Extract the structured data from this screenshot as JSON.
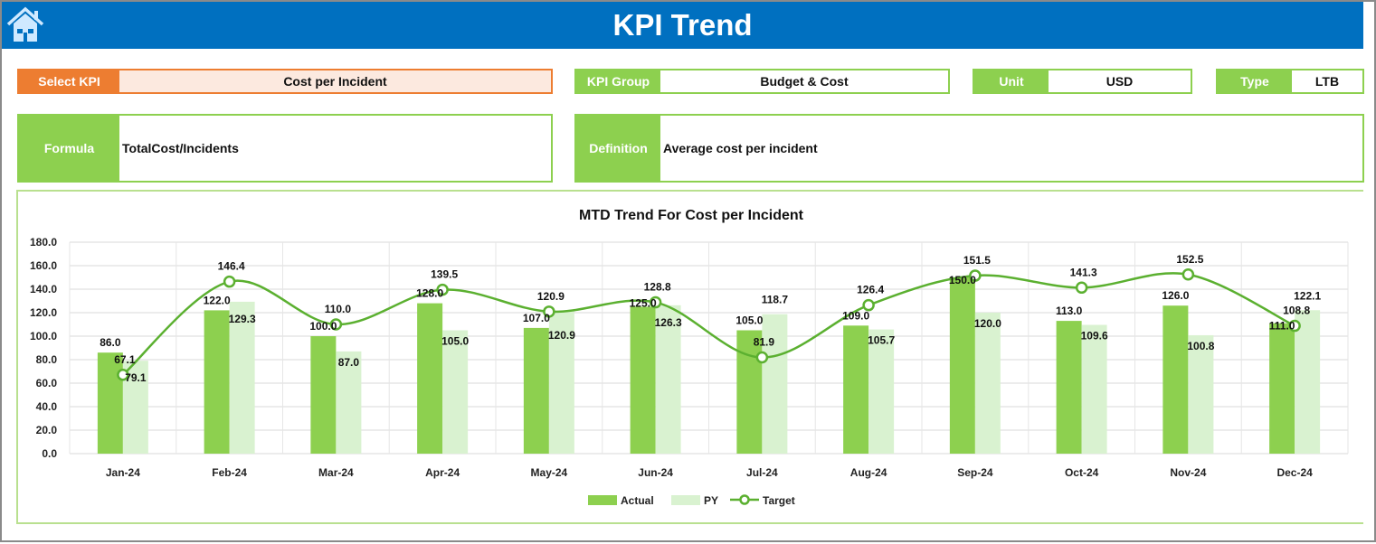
{
  "header": {
    "title": "KPI Trend",
    "home_icon": "home-icon"
  },
  "filters": {
    "select_kpi_label": "Select KPI",
    "select_kpi_value": "Cost per Incident",
    "kpi_group_label": "KPI Group",
    "kpi_group_value": "Budget & Cost",
    "unit_label": "Unit",
    "unit_value": "USD",
    "type_label": "Type",
    "type_value": "LTB"
  },
  "info": {
    "formula_label": "Formula",
    "formula_value": "TotalCost/Incidents",
    "definition_label": "Definition",
    "definition_value": "Average cost per incident"
  },
  "colors": {
    "header": "#0070C0",
    "accent": "#8DD04F",
    "select_kpi": "#ED7D31",
    "actual": "#8DD04F",
    "py": "#D9F2D0",
    "target": "#5BB030"
  },
  "chart_data": {
    "type": "bar",
    "title": "MTD Trend For Cost per Incident",
    "categories": [
      "Jan-24",
      "Feb-24",
      "Mar-24",
      "Apr-24",
      "May-24",
      "Jun-24",
      "Jul-24",
      "Aug-24",
      "Sep-24",
      "Oct-24",
      "Nov-24",
      "Dec-24"
    ],
    "series": [
      {
        "name": "Actual",
        "type": "bar",
        "values": [
          86.0,
          122.0,
          100.0,
          128.0,
          107.0,
          125.0,
          105.0,
          109.0,
          150.0,
          113.0,
          126.0,
          111.0
        ]
      },
      {
        "name": "PY",
        "type": "bar",
        "values": [
          79.1,
          129.3,
          87.0,
          105.0,
          120.9,
          126.3,
          118.7,
          105.7,
          120.0,
          109.6,
          100.8,
          122.1
        ]
      },
      {
        "name": "Target",
        "type": "line",
        "smooth": true,
        "values": [
          67.1,
          146.4,
          110.0,
          139.5,
          120.9,
          128.8,
          81.9,
          126.4,
          151.5,
          141.3,
          152.5,
          108.8
        ]
      }
    ],
    "ylim": [
      0,
      180
    ],
    "yticks": [
      "0.0",
      "20.0",
      "40.0",
      "60.0",
      "80.0",
      "100.0",
      "120.0",
      "140.0",
      "160.0",
      "180.0"
    ],
    "grid": true,
    "legend": "bottom"
  }
}
